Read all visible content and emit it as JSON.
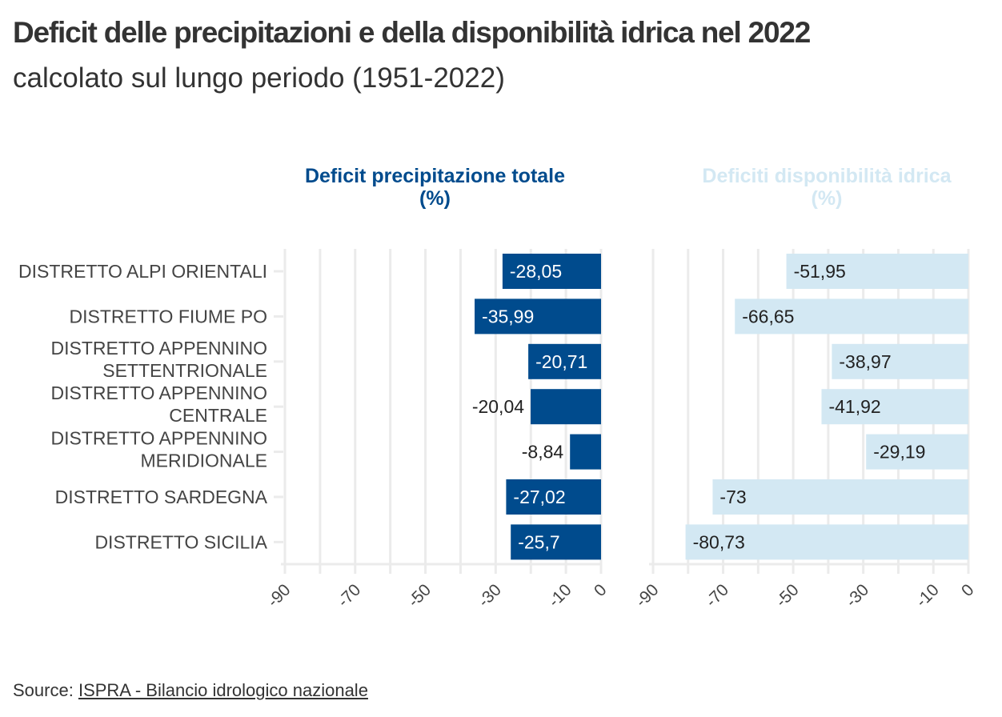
{
  "title": "Deficit delle precipitazioni e della disponibilità idrica nel 2022",
  "subtitle": "calcolato sul lungo periodo (1951-2022)",
  "source": {
    "label": "Source:",
    "link": "ISPRA - Bilancio idrologico nazionale"
  },
  "chart_data": {
    "type": "bar",
    "orientation": "horizontal",
    "categories": [
      "DISTRETTO ALPI ORIENTALI",
      "DISTRETTO FIUME PO",
      "DISTRETTO APPENNINO SETTENTRIONALE",
      "DISTRETTO APPENNINO CENTRALE",
      "DISTRETTO APPENNINO MERIDIONALE",
      "DISTRETTO SARDEGNA",
      "DISTRETTO SICILIA"
    ],
    "category_lines": [
      [
        "DISTRETTO ALPI ORIENTALI"
      ],
      [
        "DISTRETTO FIUME PO"
      ],
      [
        "DISTRETTO APPENNINO",
        "SETTENTRIONALE"
      ],
      [
        "DISTRETTO APPENNINO",
        "CENTRALE"
      ],
      [
        "DISTRETTO APPENNINO",
        "MERIDIONALE"
      ],
      [
        "DISTRETTO SARDEGNA"
      ],
      [
        "DISTRETTO SICILIA"
      ]
    ],
    "series": [
      {
        "name": "Deficit precipitazione totale (%)",
        "title_lines": [
          "Deficit precipitazione totale",
          "(%)"
        ],
        "color": "#004b8d",
        "label_color": "#ffffff",
        "values": [
          -28.05,
          -35.99,
          -20.71,
          -20.04,
          -8.84,
          -27.02,
          -25.7
        ],
        "labels": [
          "-28,05",
          "-35,99",
          "-20,71",
          "-20,04",
          "-8,84",
          "-27,02",
          "-25,7"
        ]
      },
      {
        "name": "Deficiti disponibilità idrica (%)",
        "title_lines": [
          "Deficiti disponibilità idrica",
          "(%)"
        ],
        "color": "#d3e8f3",
        "label_color": "#222222",
        "values": [
          -51.95,
          -66.65,
          -38.97,
          -41.92,
          -29.19,
          -73,
          -80.73
        ],
        "labels": [
          "-51,95",
          "-66,65",
          "-38,97",
          "-41,92",
          "-29,19",
          "-73",
          "-80,73"
        ]
      }
    ],
    "xlim": [
      -90,
      0
    ],
    "xticks": [
      -90,
      -70,
      -50,
      -30,
      -10,
      0
    ],
    "grid_step": 10,
    "grid": true
  }
}
